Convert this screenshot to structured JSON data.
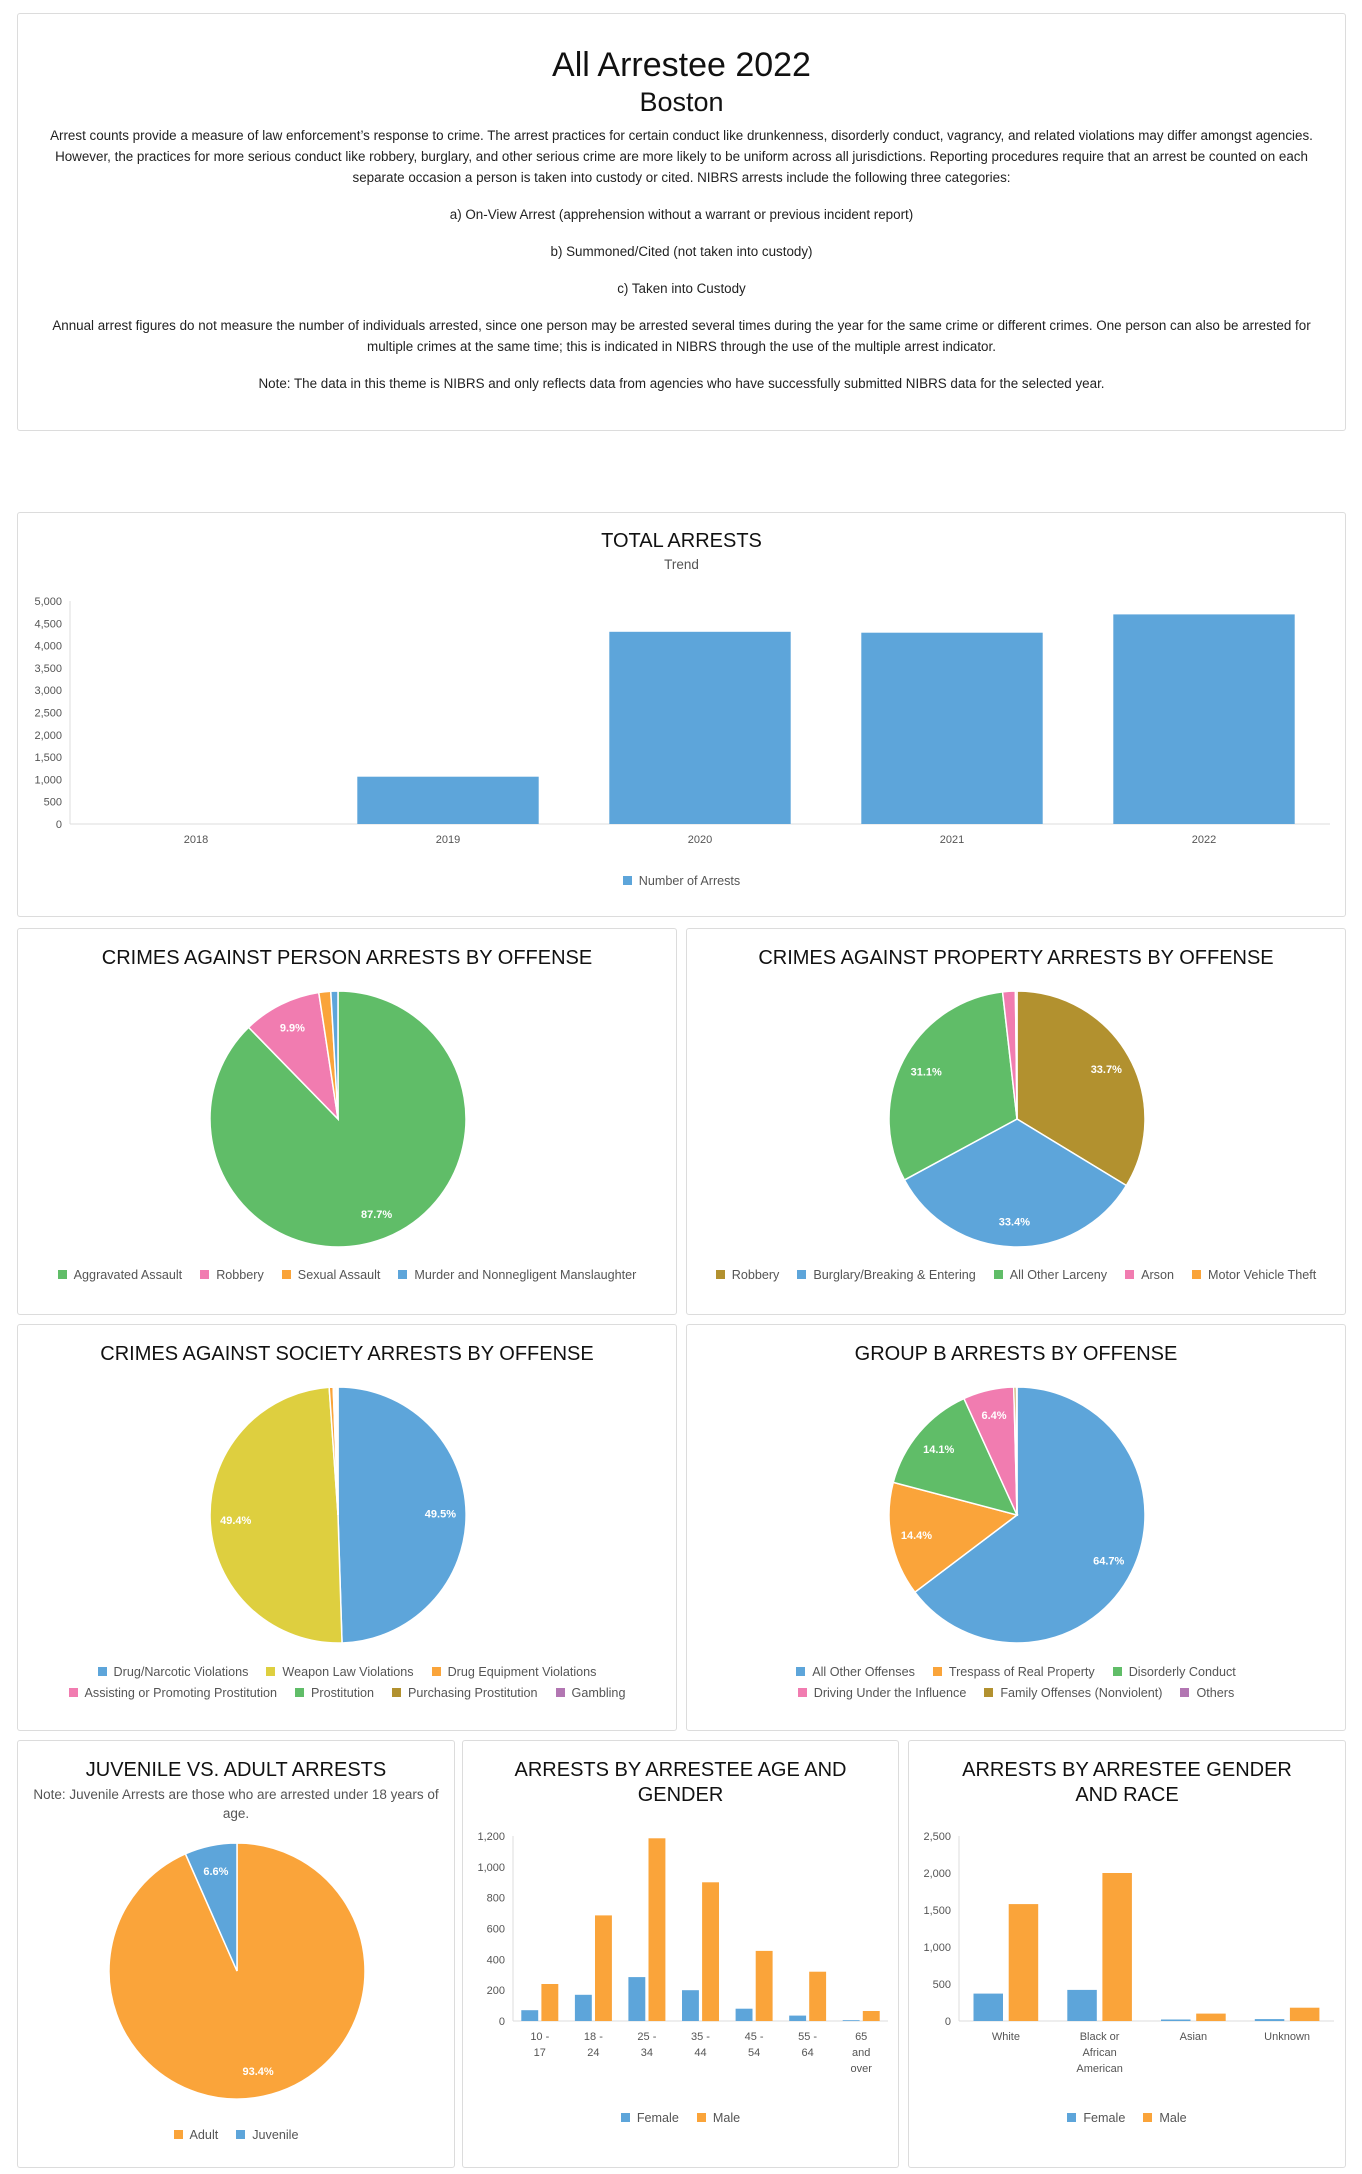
{
  "header": {
    "title": "All Arrestee 2022",
    "subtitle": "Boston",
    "description": "Arrest counts provide a measure of law enforcement’s response to crime. The arrest practices for certain conduct like drunkenness, disorderly conduct, vagrancy, and related violations may differ amongst agencies. However, the practices for more serious conduct like robbery, burglary, and other serious crime are more likely to be uniform across all jurisdictions. Reporting procedures require that an arrest be counted on each separate occasion a person is taken into custody or cited. NIBRS arrests include the following three categories:",
    "categories": [
      "a) On-View Arrest (apprehension without a warrant or previous incident report)",
      "b) Summoned/Cited (not taken into custody)",
      "c) Taken into Custody"
    ],
    "annual_note": "Annual arrest figures do not measure the number of individuals arrested, since one person may be arrested several times during the year for the same crime or different crimes. One person can also be arrested for multiple crimes at the same time; this is indicated in NIBRS through the use of the multiple arrest indicator.",
    "nibrs_note": "Note: The data in this theme is NIBRS and only reflects data from agencies who have successfully submitted NIBRS data for the selected year."
  },
  "colors": {
    "blue": "#5da5da",
    "orange": "#faa43a",
    "green": "#60bd68",
    "pink": "#f17cb0",
    "olive": "#b2912f",
    "yellow": "#decf3f",
    "purple": "#b276b2",
    "red": "#f15854"
  },
  "chart_data": [
    {
      "id": "total",
      "type": "bar",
      "title": "TOTAL ARRESTS",
      "subtitle": "Trend",
      "categories": [
        "2018",
        "2019",
        "2020",
        "2021",
        "2022"
      ],
      "series": [
        {
          "name": "Number of Arrests",
          "color": "#5da5da",
          "values": [
            0,
            1060,
            4310,
            4290,
            4700
          ]
        }
      ],
      "ylim": [
        0,
        5000
      ],
      "yticks": [
        "0",
        "500",
        "1,000",
        "1,500",
        "2,000",
        "2,500",
        "3,000",
        "3,500",
        "4,000",
        "4,500",
        "5,000"
      ],
      "grid": false,
      "legend": "bottom"
    },
    {
      "id": "person",
      "type": "pie",
      "title": "CRIMES AGAINST PERSON ARRESTS BY OFFENSE",
      "slices": [
        {
          "label": "Aggravated Assault",
          "value": 87.7,
          "color": "#60bd68",
          "show": "87.7%"
        },
        {
          "label": "Robbery",
          "value": 9.9,
          "color": "#f17cb0",
          "show": "9.9%"
        },
        {
          "label": "Sexual Assault",
          "value": 1.5,
          "color": "#faa43a",
          "show": ""
        },
        {
          "label": "Murder and Nonnegligent Manslaughter",
          "value": 0.9,
          "color": "#5da5da",
          "show": ""
        }
      ],
      "legend": "bottom"
    },
    {
      "id": "property",
      "type": "pie",
      "title": "CRIMES AGAINST PROPERTY ARRESTS BY OFFENSE",
      "slices": [
        {
          "label": "Robbery",
          "value": 33.7,
          "color": "#b2912f",
          "show": "33.7%"
        },
        {
          "label": "Burglary/Breaking & Entering",
          "value": 33.4,
          "color": "#5da5da",
          "show": "33.4%"
        },
        {
          "label": "All Other Larceny",
          "value": 31.1,
          "color": "#60bd68",
          "show": "31.1%"
        },
        {
          "label": "Arson",
          "value": 1.6,
          "color": "#f17cb0",
          "show": ""
        },
        {
          "label": "Motor Vehicle Theft",
          "value": 0.2,
          "color": "#faa43a",
          "show": ""
        }
      ],
      "legend": "bottom"
    },
    {
      "id": "society",
      "type": "pie",
      "title": "CRIMES AGAINST SOCIETY ARRESTS BY OFFENSE",
      "slices": [
        {
          "label": "Drug/Narcotic Violations",
          "value": 49.5,
          "color": "#5da5da",
          "show": "49.5%"
        },
        {
          "label": "Weapon Law Violations",
          "value": 49.4,
          "color": "#decf3f",
          "show": "49.4%"
        },
        {
          "label": "Drug Equipment Violations",
          "value": 0.5,
          "color": "#faa43a",
          "show": ""
        },
        {
          "label": "Assisting or Promoting Prostitution",
          "value": 0.2,
          "color": "#f17cb0",
          "show": ""
        },
        {
          "label": "Prostitution",
          "value": 0.2,
          "color": "#60bd68",
          "show": ""
        },
        {
          "label": "Purchasing Prostitution",
          "value": 0.1,
          "color": "#b2912f",
          "show": ""
        },
        {
          "label": "Gambling",
          "value": 0.1,
          "color": "#b276b2",
          "show": ""
        }
      ],
      "legend": "bottom"
    },
    {
      "id": "groupb",
      "type": "pie",
      "title": "GROUP B ARRESTS BY OFFENSE",
      "slices": [
        {
          "label": "All Other Offenses",
          "value": 64.7,
          "color": "#5da5da",
          "show": "64.7%"
        },
        {
          "label": "Trespass of Real Property",
          "value": 14.4,
          "color": "#faa43a",
          "show": "14.4%"
        },
        {
          "label": "Disorderly Conduct",
          "value": 14.1,
          "color": "#60bd68",
          "show": "14.1%"
        },
        {
          "label": "Driving Under the Influence",
          "value": 6.4,
          "color": "#f17cb0",
          "show": "6.4%"
        },
        {
          "label": "Family Offenses (Nonviolent)",
          "value": 0.3,
          "color": "#b2912f",
          "show": ""
        },
        {
          "label": "Others",
          "value": 0.1,
          "color": "#b276b2",
          "show": ""
        }
      ],
      "legend": "bottom"
    },
    {
      "id": "juvenile",
      "type": "pie",
      "title": "JUVENILE VS. ADULT ARRESTS",
      "note": "Note: Juvenile Arrests are those who are arrested under 18 years of age.",
      "slices": [
        {
          "label": "Adult",
          "value": 93.4,
          "color": "#faa43a",
          "show": "93.4%"
        },
        {
          "label": "Juvenile",
          "value": 6.6,
          "color": "#5da5da",
          "show": "6.6%"
        }
      ],
      "legend": "bottom"
    },
    {
      "id": "age",
      "type": "bar",
      "title": "ARRESTS BY ARRESTEE AGE AND GENDER",
      "categories": [
        [
          "10 -",
          "17"
        ],
        [
          "18 -",
          "24"
        ],
        [
          "25 -",
          "34"
        ],
        [
          "35 -",
          "44"
        ],
        [
          "45 -",
          "54"
        ],
        [
          "55 -",
          "64"
        ],
        [
          "65",
          "and",
          "over"
        ]
      ],
      "series": [
        {
          "name": "Female",
          "color": "#5da5da",
          "values": [
            70,
            170,
            285,
            200,
            80,
            35,
            5
          ]
        },
        {
          "name": "Male",
          "color": "#faa43a",
          "values": [
            240,
            685,
            1185,
            900,
            455,
            320,
            65
          ]
        }
      ],
      "ylim": [
        0,
        1200
      ],
      "yticks": [
        "0",
        "200",
        "400",
        "600",
        "800",
        "1,000",
        "1,200"
      ],
      "grid": false,
      "legend": "bottom"
    },
    {
      "id": "race",
      "type": "bar",
      "title": "ARRESTS BY ARRESTEE GENDER AND RACE",
      "categories": [
        [
          "White"
        ],
        [
          "Black or",
          "African",
          "American"
        ],
        [
          "Asian"
        ],
        [
          "Unknown"
        ]
      ],
      "series": [
        {
          "name": "Female",
          "color": "#5da5da",
          "values": [
            370,
            420,
            20,
            25
          ]
        },
        {
          "name": "Male",
          "color": "#faa43a",
          "values": [
            1580,
            2000,
            100,
            180
          ]
        }
      ],
      "ylim": [
        0,
        2500
      ],
      "yticks": [
        "0",
        "500",
        "1,000",
        "1,500",
        "2,000",
        "2,500"
      ],
      "grid": false,
      "legend": "bottom"
    }
  ]
}
